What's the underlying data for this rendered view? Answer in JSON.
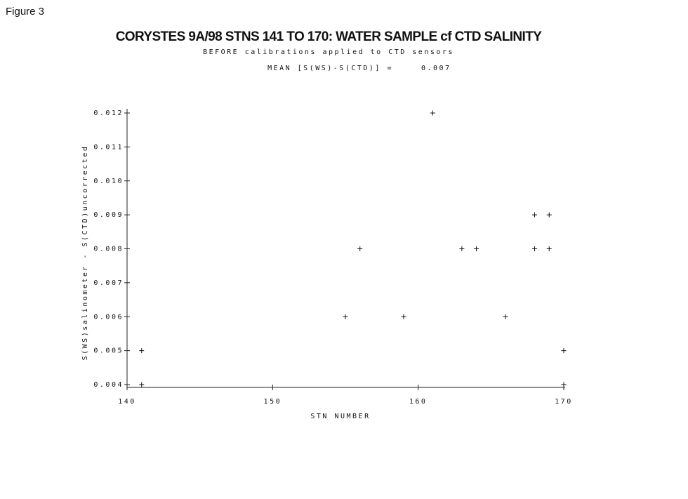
{
  "figure_label": "Figure 3",
  "chart_data": {
    "type": "scatter",
    "title": "CORYSTES 9A/98 STNS 141 TO 170: WATER SAMPLE cf CTD SALINITY",
    "subtitle": "BEFORE calibrations applied to CTD sensors",
    "mean_label": "MEAN [S(WS)-S(CTD)] =",
    "mean_value": 0.007,
    "x_label": "STN NUMBER",
    "y_label": "S(WS)salinometer - S(CTD)uncorrected",
    "xlim": [
      140,
      170
    ],
    "xticks": [
      140,
      150,
      160,
      170
    ],
    "ylim": [
      0.004,
      0.012
    ],
    "yticks": [
      0.004,
      0.005,
      0.006,
      0.007,
      0.008,
      0.009,
      {
        "value": 0.01,
        "label": "0.010"
      },
      0.011,
      0.012
    ],
    "grid": false,
    "series": [
      {
        "color": "#111111",
        "x": [
          141,
          141,
          155,
          156,
          159,
          161,
          163,
          164,
          166,
          168,
          168,
          169,
          169,
          170,
          170
        ],
        "values": [
          0.005,
          0.004,
          0.006,
          0.008,
          0.006,
          0.012,
          0.008,
          0.008,
          0.006,
          0.009,
          0.008,
          0.009,
          0.008,
          0.005,
          0.004
        ]
      }
    ]
  }
}
